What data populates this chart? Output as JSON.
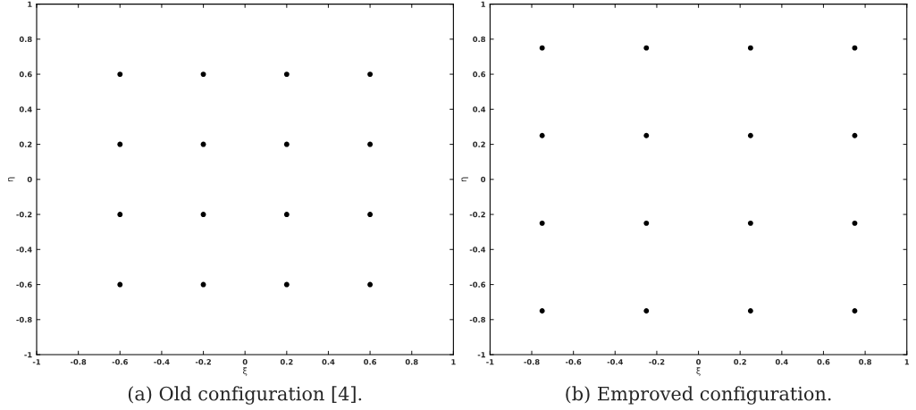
{
  "chart_data": [
    {
      "type": "scatter",
      "xlabel": "ξ",
      "ylabel": "η",
      "annotations": [
        "(a) Old configuration [4]."
      ],
      "series": [
        {
          "color": "#000000",
          "x": [
            -0.6,
            -0.2,
            0.2,
            0.6,
            -0.6,
            -0.2,
            0.2,
            0.6,
            -0.6,
            -0.2,
            0.2,
            0.6,
            -0.6,
            -0.2,
            0.2,
            0.6
          ],
          "values": [
            0.6,
            0.6,
            0.6,
            0.6,
            0.2,
            0.2,
            0.2,
            0.2,
            -0.2,
            -0.2,
            -0.2,
            -0.2,
            -0.6,
            -0.6,
            -0.6,
            -0.6
          ]
        }
      ],
      "marker": "circle",
      "xlim": [
        -1,
        1
      ],
      "ylim": [
        -1,
        1
      ],
      "xticks": [
        -1,
        -0.8,
        -0.6,
        -0.4,
        -0.2,
        0,
        0.2,
        0.4,
        0.6,
        0.8,
        1
      ],
      "yticks": [
        -1,
        -0.8,
        -0.6,
        -0.4,
        -0.2,
        0,
        0.2,
        0.4,
        0.6,
        0.8,
        1
      ],
      "grid": false,
      "legend": false
    },
    {
      "type": "scatter",
      "xlabel": "ξ",
      "ylabel": "η",
      "annotations": [
        "(b) Emproved configuration."
      ],
      "series": [
        {
          "color": "#000000",
          "x": [
            -0.75,
            -0.25,
            0.25,
            0.75,
            -0.75,
            -0.25,
            0.25,
            0.75,
            -0.75,
            -0.25,
            0.25,
            0.75,
            -0.75,
            -0.25,
            0.25,
            0.75
          ],
          "values": [
            0.75,
            0.75,
            0.75,
            0.75,
            0.25,
            0.25,
            0.25,
            0.25,
            -0.25,
            -0.25,
            -0.25,
            -0.25,
            -0.75,
            -0.75,
            -0.75,
            -0.75
          ]
        }
      ],
      "marker": "circle",
      "xlim": [
        -1,
        1
      ],
      "ylim": [
        -1,
        1
      ],
      "xticks": [
        -1,
        -0.8,
        -0.6,
        -0.4,
        -0.2,
        0,
        0.2,
        0.4,
        0.6,
        0.8,
        1
      ],
      "yticks": [
        -1,
        -0.8,
        -0.6,
        -0.4,
        -0.2,
        0,
        0.2,
        0.4,
        0.6,
        0.8,
        1
      ],
      "grid": false,
      "legend": false
    }
  ]
}
